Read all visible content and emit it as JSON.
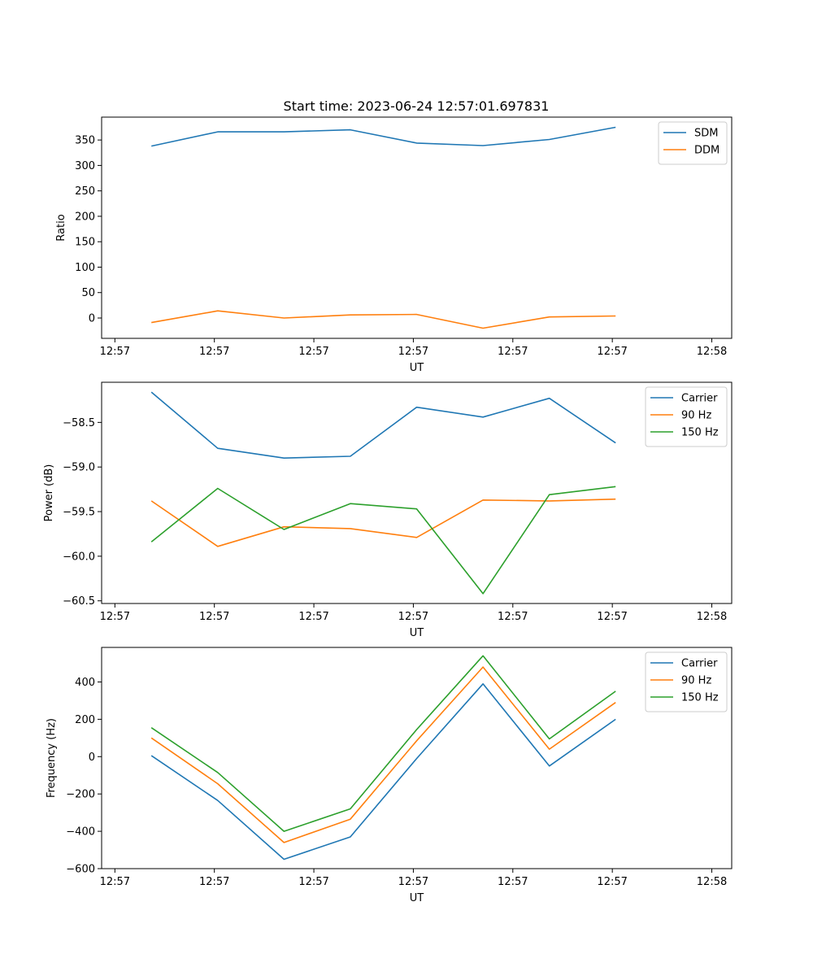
{
  "figure_title": "Start time: 2023-06-24 12:57:01.697831",
  "colors": {
    "series_1": "#1f77b4",
    "series_2": "#ff7f0e",
    "series_3": "#2ca02c"
  },
  "chart_data": [
    {
      "type": "line",
      "title": "Start time: 2023-06-24 12:57:01.697831",
      "xlabel": "UT",
      "ylabel": "Ratio",
      "x_tick_labels": [
        "12:57",
        "12:57",
        "12:57",
        "12:57",
        "12:57",
        "12:57",
        "12:58"
      ],
      "y_ticks": [
        0,
        50,
        100,
        150,
        200,
        250,
        300,
        350
      ],
      "y_tick_labels": [
        "0",
        "50",
        "100",
        "150",
        "200",
        "250",
        "300",
        "350"
      ],
      "ylim": [
        -40,
        395
      ],
      "grid": false,
      "legend_position": "top-right",
      "series": [
        {
          "name": "SDM",
          "values": [
            338,
            366,
            366,
            370,
            344,
            339,
            351,
            375
          ]
        },
        {
          "name": "DDM",
          "values": [
            -9,
            14,
            0,
            6,
            7,
            -20,
            2,
            4
          ]
        }
      ]
    },
    {
      "type": "line",
      "title": "",
      "xlabel": "UT",
      "ylabel": "Power (dB)",
      "x_tick_labels": [
        "12:57",
        "12:57",
        "12:57",
        "12:57",
        "12:57",
        "12:57",
        "12:58"
      ],
      "y_ticks": [
        -58.5,
        -59.0,
        -59.5,
        -60.0,
        -60.5
      ],
      "y_tick_labels": [
        "−58.5",
        "−59.0",
        "−59.5",
        "−60.0",
        "−60.5"
      ],
      "ylim": [
        -60.53,
        -58.05
      ],
      "grid": false,
      "legend_position": "top-right",
      "series": [
        {
          "name": "Carrier",
          "values": [
            -58.16,
            -58.79,
            -58.9,
            -58.88,
            -58.33,
            -58.44,
            -58.23,
            -58.73
          ]
        },
        {
          "name": "90 Hz",
          "values": [
            -59.38,
            -59.89,
            -59.67,
            -59.69,
            -59.79,
            -59.37,
            -59.38,
            -59.36
          ]
        },
        {
          "name": "150 Hz",
          "values": [
            -59.84,
            -59.24,
            -59.7,
            -59.41,
            -59.47,
            -60.42,
            -59.31,
            -59.22
          ]
        }
      ]
    },
    {
      "type": "line",
      "title": "",
      "xlabel": "UT",
      "ylabel": "Frequency (Hz)",
      "x_tick_labels": [
        "12:57",
        "12:57",
        "12:57",
        "12:57",
        "12:57",
        "12:57",
        "12:58"
      ],
      "y_ticks": [
        400,
        200,
        0,
        -200,
        -400,
        -600
      ],
      "y_tick_labels": [
        "400",
        "200",
        "0",
        "−200",
        "−400",
        "−600"
      ],
      "ylim": [
        -600,
        585
      ],
      "grid": false,
      "legend_position": "top-right",
      "series": [
        {
          "name": "Carrier",
          "values": [
            5,
            -235,
            -550,
            -430,
            -10,
            390,
            -50,
            200
          ]
        },
        {
          "name": "90 Hz",
          "values": [
            100,
            -145,
            -460,
            -335,
            85,
            480,
            40,
            290
          ]
        },
        {
          "name": "150 Hz",
          "values": [
            155,
            -85,
            -400,
            -280,
            145,
            540,
            95,
            350
          ]
        }
      ]
    }
  ]
}
